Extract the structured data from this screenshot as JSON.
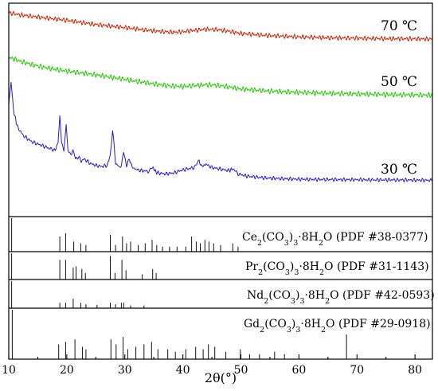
{
  "chart_data": {
    "type": "line",
    "title": "",
    "xlabel": "2θ(°)",
    "ylabel": "",
    "xlim": [
      10,
      83
    ],
    "x_ticks": [
      10,
      20,
      30,
      40,
      50,
      60,
      70,
      80
    ],
    "grid": false,
    "legend": "none",
    "series": [
      {
        "name": "70 ℃",
        "color": "#cc2200",
        "x": [
          10,
          11,
          12,
          15,
          20,
          25,
          30,
          33,
          36,
          38,
          40,
          42,
          44,
          46,
          48,
          50,
          55,
          60,
          65,
          70,
          75,
          80,
          83
        ],
        "y": [
          0.955,
          0.95,
          0.945,
          0.935,
          0.92,
          0.9,
          0.886,
          0.876,
          0.868,
          0.864,
          0.866,
          0.873,
          0.878,
          0.876,
          0.868,
          0.858,
          0.848,
          0.842,
          0.838,
          0.836,
          0.834,
          0.833,
          0.832
        ]
      },
      {
        "name": "50 ℃",
        "color": "#22cc00",
        "x": [
          10,
          11,
          12,
          14,
          16,
          18,
          20,
          22,
          25,
          28,
          30,
          33,
          36,
          38,
          40,
          42,
          44,
          46,
          48,
          50,
          55,
          60,
          65,
          70,
          75,
          80,
          83
        ],
        "y": [
          0.745,
          0.738,
          0.728,
          0.712,
          0.7,
          0.69,
          0.682,
          0.675,
          0.664,
          0.652,
          0.643,
          0.63,
          0.618,
          0.612,
          0.61,
          0.614,
          0.618,
          0.615,
          0.607,
          0.598,
          0.588,
          0.582,
          0.578,
          0.575,
          0.572,
          0.57,
          0.569
        ]
      },
      {
        "name": "30 ℃",
        "color": "#2a1acc",
        "x": [
          10.0,
          10.4,
          10.8,
          11.5,
          12.5,
          14,
          16,
          18,
          18.5,
          18.8,
          19.1,
          19.5,
          19.9,
          20.2,
          20.6,
          21.2,
          21.5,
          22,
          22.5,
          23,
          24,
          25,
          26,
          27,
          27.5,
          27.9,
          28.4,
          29,
          29.4,
          29.8,
          30.3,
          30.8,
          31.3,
          32,
          33,
          34,
          34.8,
          35.5,
          37,
          38.5,
          39.5,
          41,
          42,
          42.8,
          43.3,
          44,
          45,
          46,
          47,
          48,
          48.6,
          49.5,
          51,
          53,
          55,
          57,
          59,
          61,
          63,
          65,
          68,
          70,
          73,
          76,
          80,
          83
        ],
        "y": [
          0.52,
          0.63,
          0.5,
          0.42,
          0.38,
          0.35,
          0.33,
          0.31,
          0.35,
          0.48,
          0.34,
          0.31,
          0.43,
          0.31,
          0.29,
          0.31,
          0.27,
          0.28,
          0.26,
          0.27,
          0.25,
          0.24,
          0.235,
          0.24,
          0.29,
          0.41,
          0.25,
          0.235,
          0.24,
          0.3,
          0.24,
          0.27,
          0.23,
          0.22,
          0.215,
          0.212,
          0.23,
          0.205,
          0.2,
          0.205,
          0.215,
          0.225,
          0.23,
          0.26,
          0.235,
          0.245,
          0.23,
          0.225,
          0.22,
          0.215,
          0.225,
          0.2,
          0.19,
          0.184,
          0.18,
          0.178,
          0.176,
          0.175,
          0.174,
          0.174,
          0.173,
          0.173,
          0.172,
          0.172,
          0.171,
          0.17
        ]
      }
    ],
    "temperature_labels": [
      "70 ℃",
      "50 ℃",
      "30 ℃"
    ],
    "reference_patterns": [
      {
        "formula": [
          "Ce",
          "2",
          "(CO",
          "3",
          ")",
          "3",
          "·8H",
          "2",
          "O (PDF #38-0377)"
        ],
        "peaks": [
          [
            10.5,
            1.0
          ],
          [
            18.8,
            0.45
          ],
          [
            19.8,
            0.55
          ],
          [
            21.2,
            0.3
          ],
          [
            22.4,
            0.25
          ],
          [
            23.3,
            0.2
          ],
          [
            27.5,
            0.5
          ],
          [
            28.4,
            0.2
          ],
          [
            29.6,
            0.45
          ],
          [
            30.3,
            0.25
          ],
          [
            31.0,
            0.3
          ],
          [
            32.3,
            0.2
          ],
          [
            33.5,
            0.25
          ],
          [
            34.7,
            0.35
          ],
          [
            35.5,
            0.2
          ],
          [
            36.5,
            0.15
          ],
          [
            37.7,
            0.15
          ],
          [
            39.0,
            0.15
          ],
          [
            40.5,
            0.15
          ],
          [
            41.5,
            0.45
          ],
          [
            42.3,
            0.3
          ],
          [
            43.0,
            0.25
          ],
          [
            43.8,
            0.35
          ],
          [
            44.5,
            0.3
          ],
          [
            45.3,
            0.25
          ],
          [
            46.5,
            0.2
          ],
          [
            48.6,
            0.25
          ],
          [
            49.5,
            0.15
          ]
        ]
      },
      {
        "formula": [
          "Pr",
          "2",
          "(CO",
          "3",
          ")",
          "3",
          "·8H",
          "2",
          "O (PDF #31-1143)"
        ],
        "peaks": [
          [
            10.5,
            1.0
          ],
          [
            18.8,
            0.75
          ],
          [
            19.8,
            0.75
          ],
          [
            21.1,
            0.45
          ],
          [
            21.6,
            0.5
          ],
          [
            22.6,
            0.4
          ],
          [
            23.2,
            0.25
          ],
          [
            27.5,
            0.9
          ],
          [
            28.3,
            0.25
          ],
          [
            29.5,
            0.75
          ],
          [
            30.2,
            0.35
          ],
          [
            33.0,
            0.2
          ],
          [
            34.8,
            0.4
          ],
          [
            35.4,
            0.25
          ]
        ]
      },
      {
        "formula": [
          "Nd",
          "2",
          "(CO",
          "3",
          ")",
          "3",
          "·8H",
          "2",
          "O (PDF #42-0593)"
        ],
        "peaks": [
          [
            10.5,
            1.0
          ],
          [
            18.8,
            0.2
          ],
          [
            19.8,
            0.2
          ],
          [
            21.1,
            0.35
          ],
          [
            22.4,
            0.2
          ],
          [
            23.3,
            0.15
          ],
          [
            25.2,
            0.12
          ],
          [
            27.5,
            0.2
          ],
          [
            28.4,
            0.15
          ],
          [
            29.4,
            0.2
          ],
          [
            29.8,
            0.2
          ],
          [
            31.0,
            0.1
          ],
          [
            33.3,
            0.1
          ]
        ]
      },
      {
        "formula": [
          "Gd",
          "2",
          "(CO",
          "3",
          ")",
          "3",
          "·8H",
          "2",
          "O (PDF #29-0918)"
        ],
        "peaks": [
          [
            10.6,
            1.0
          ],
          [
            18.6,
            0.3
          ],
          [
            19.8,
            0.35
          ],
          [
            21.4,
            0.4
          ],
          [
            22.7,
            0.25
          ],
          [
            23.3,
            0.2
          ],
          [
            27.6,
            0.4
          ],
          [
            28.5,
            0.3
          ],
          [
            29.7,
            0.45
          ],
          [
            30.5,
            0.2
          ],
          [
            31.9,
            0.25
          ],
          [
            33.3,
            0.3
          ],
          [
            34.6,
            0.35
          ],
          [
            35.7,
            0.2
          ],
          [
            37.4,
            0.2
          ],
          [
            38.7,
            0.15
          ],
          [
            40.5,
            0.2
          ],
          [
            42.2,
            0.25
          ],
          [
            43.5,
            0.2
          ],
          [
            44.4,
            0.3
          ],
          [
            45.5,
            0.25
          ],
          [
            47.4,
            0.15
          ],
          [
            49.9,
            0.2
          ],
          [
            51.5,
            0.1
          ],
          [
            53.2,
            0.1
          ],
          [
            55.8,
            0.15
          ],
          [
            57.5,
            0.1
          ],
          [
            68.2,
            0.5
          ]
        ]
      }
    ]
  }
}
